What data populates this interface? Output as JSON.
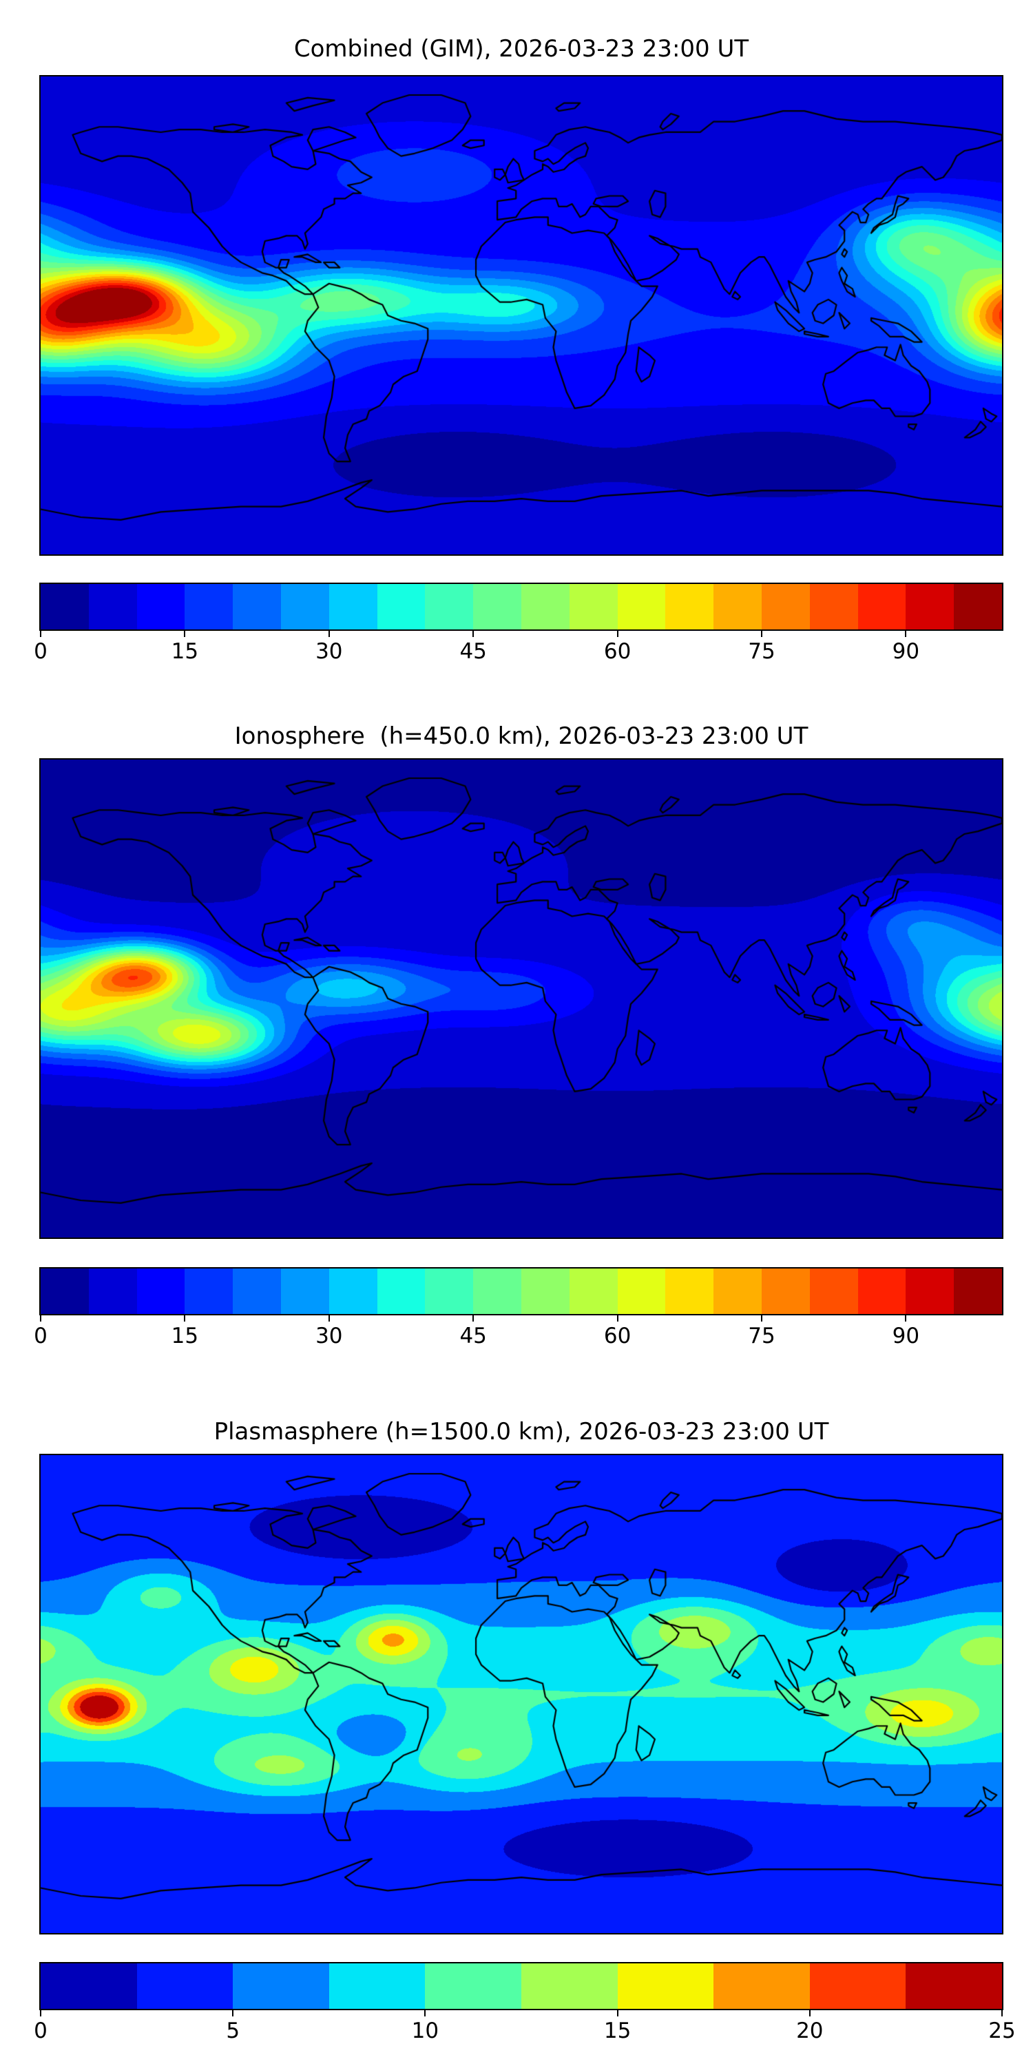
{
  "figure": {
    "background": "#ffffff",
    "text_color": "#000000",
    "description": "Three stacked global TEC maps (filled contours, jet colormap) with horizontal colorbars"
  },
  "chart_data": [
    {
      "type": "heatmap",
      "subtype": "filled-contour-world-map",
      "title": "Combined (GIM), 2026-03-23 23:00 UT",
      "projection": "equirectangular",
      "lon_range": [
        -180,
        180
      ],
      "lat_range": [
        -90,
        90
      ],
      "colormap": "jet",
      "value_min": 0,
      "value_max": 100,
      "contour_step": 5,
      "colorbar_ticks": [
        0,
        15,
        30,
        45,
        60,
        75,
        90
      ],
      "legend_position": "bottom",
      "grid": false,
      "peak": {
        "lon": -147,
        "lat": 7,
        "value": 100
      },
      "field": {
        "base": {
          "offset": 6,
          "amp": 9,
          "lat0": -3,
          "lat_sigma": 42
        },
        "blobs": [
          {
            "lon": -147,
            "lat": 7,
            "amp": 70,
            "sx": 26,
            "sy": 12
          },
          {
            "lon": -172,
            "lat": -3,
            "amp": 45,
            "sx": 26,
            "sy": 15
          },
          {
            "lon": -118,
            "lat": -10,
            "amp": 48,
            "sx": 32,
            "sy": 15
          },
          {
            "lon": -65,
            "lat": 6,
            "amp": 32,
            "sx": 35,
            "sy": 12
          },
          {
            "lon": -5,
            "lat": 4,
            "amp": 22,
            "sx": 30,
            "sy": 11
          },
          {
            "lon": 162,
            "lat": 22,
            "amp": 30,
            "sx": 35,
            "sy": 18
          },
          {
            "lon": 178,
            "lat": -4,
            "amp": 18,
            "sx": 22,
            "sy": 16
          },
          {
            "lon": 145,
            "lat": 30,
            "amp": 15,
            "sx": 20,
            "sy": 12
          },
          {
            "lon": -40,
            "lat": 55,
            "amp": 10,
            "sx": 55,
            "sy": 18
          },
          {
            "lon": -25,
            "lat": -52,
            "amp": -6,
            "sx": 55,
            "sy": 15
          },
          {
            "lon": 95,
            "lat": -52,
            "amp": -6,
            "sx": 55,
            "sy": 15
          }
        ]
      }
    },
    {
      "type": "heatmap",
      "subtype": "filled-contour-world-map",
      "title": "Ionosphere  (h=450.0 km), 2026-03-23 23:00 UT",
      "projection": "equirectangular",
      "lon_range": [
        -180,
        180
      ],
      "lat_range": [
        -90,
        90
      ],
      "colormap": "jet",
      "value_min": 0,
      "value_max": 100,
      "contour_step": 5,
      "colorbar_ticks": [
        0,
        15,
        30,
        45,
        60,
        75,
        90
      ],
      "legend_position": "bottom",
      "grid": false,
      "peak": {
        "lon": -143,
        "lat": 9,
        "value": 84
      },
      "field": {
        "base": {
          "offset": 2.5,
          "amp": 6,
          "lat0": -3,
          "lat_sigma": 40
        },
        "blobs": [
          {
            "lon": -143,
            "lat": 9,
            "amp": 70,
            "sx": 24,
            "sy": 11
          },
          {
            "lon": -168,
            "lat": -6,
            "amp": 40,
            "sx": 25,
            "sy": 14
          },
          {
            "lon": -120,
            "lat": -14,
            "amp": 55,
            "sx": 28,
            "sy": 12
          },
          {
            "lon": -65,
            "lat": 4,
            "amp": 24,
            "sx": 32,
            "sy": 11
          },
          {
            "lon": -8,
            "lat": 3,
            "amp": 10,
            "sx": 26,
            "sy": 10
          },
          {
            "lon": 170,
            "lat": 0,
            "amp": 22,
            "sx": 26,
            "sy": 16
          },
          {
            "lon": 160,
            "lat": 22,
            "amp": 16,
            "sx": 30,
            "sy": 15
          },
          {
            "lon": 145,
            "lat": 30,
            "amp": 8,
            "sx": 18,
            "sy": 10
          },
          {
            "lon": -40,
            "lat": 55,
            "amp": 6,
            "sx": 50,
            "sy": 16
          },
          {
            "lon": -25,
            "lat": -52,
            "amp": -5,
            "sx": 55,
            "sy": 14
          },
          {
            "lon": 95,
            "lat": -52,
            "amp": -5,
            "sx": 55,
            "sy": 14
          }
        ]
      }
    },
    {
      "type": "heatmap",
      "subtype": "filled-contour-world-map",
      "title": "Plasmasphere (h=1500.0 km), 2026-03-23 23:00 UT",
      "projection": "equirectangular",
      "lon_range": [
        -180,
        180
      ],
      "lat_range": [
        -90,
        90
      ],
      "colormap": "jet",
      "value_min": 0,
      "value_max": 25,
      "contour_step": 2.5,
      "colorbar_ticks": [
        0,
        5,
        10,
        15,
        20,
        25
      ],
      "legend_position": "bottom",
      "grid": false,
      "peak": {
        "lon": -158,
        "lat": -5,
        "value": 25
      },
      "field": {
        "base": {
          "offset": 3,
          "amp": 7,
          "lat0": 0,
          "lat_sigma": 38
        },
        "blobs": [
          {
            "lon": -158,
            "lat": -5,
            "amp": 17,
            "sx": 13,
            "sy": 8
          },
          {
            "lon": -48,
            "lat": 21,
            "amp": 10,
            "sx": 15,
            "sy": 9
          },
          {
            "lon": -100,
            "lat": 10,
            "amp": 7,
            "sx": 18,
            "sy": 10
          },
          {
            "lon": -135,
            "lat": 38,
            "amp": 5,
            "sx": 20,
            "sy": 10
          },
          {
            "lon": 65,
            "lat": 25,
            "amp": 7,
            "sx": 22,
            "sy": 10
          },
          {
            "lon": 150,
            "lat": -8,
            "amp": 7,
            "sx": 22,
            "sy": 10
          },
          {
            "lon": 175,
            "lat": 18,
            "amp": 5,
            "sx": 20,
            "sy": 10
          },
          {
            "lon": -20,
            "lat": -25,
            "amp": 5,
            "sx": 25,
            "sy": 12
          },
          {
            "lon": -90,
            "lat": -28,
            "amp": 6,
            "sx": 28,
            "sy": 10
          },
          {
            "lon": -55,
            "lat": -15,
            "amp": -4,
            "sx": 18,
            "sy": 10
          },
          {
            "lon": 120,
            "lat": 45,
            "amp": -4,
            "sx": 30,
            "sy": 12
          },
          {
            "lon": -60,
            "lat": 60,
            "amp": -3,
            "sx": 40,
            "sy": 12
          },
          {
            "lon": 40,
            "lat": -55,
            "amp": -3,
            "sx": 50,
            "sy": 12
          }
        ]
      }
    }
  ]
}
